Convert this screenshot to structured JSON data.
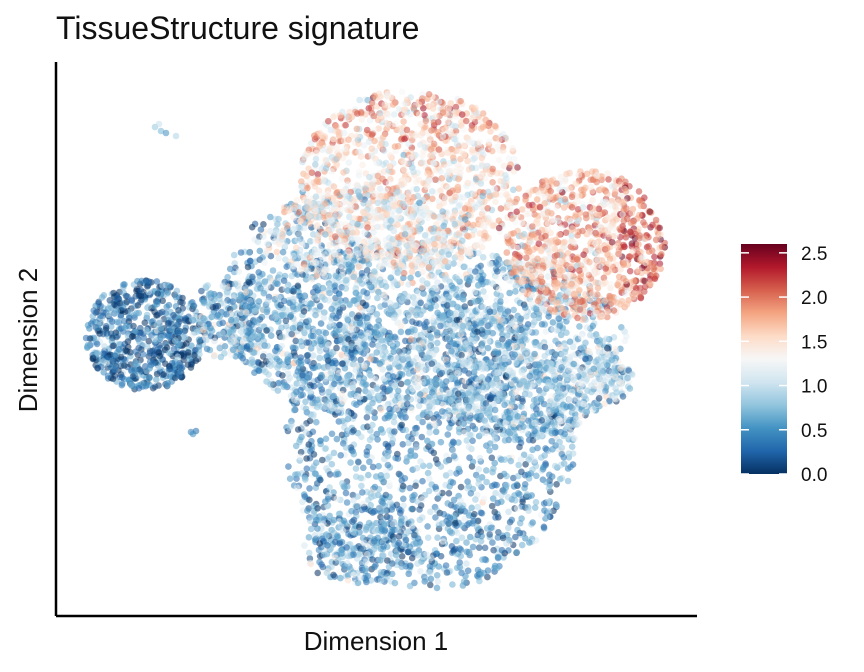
{
  "chart_data": {
    "type": "scatter",
    "title": "TissueStructure signature",
    "xlabel": "Dimension 1",
    "ylabel": "Dimension 2",
    "x_ticks_shown": false,
    "y_ticks_shown": false,
    "xlim": [
      0,
      10
    ],
    "ylim": [
      0,
      10
    ],
    "grid": false,
    "point_opacity": 0.55,
    "colorbar": {
      "placement": "right",
      "range": [
        0.0,
        2.6
      ],
      "ticks": [
        {
          "value": 0.0,
          "label": "0.0"
        },
        {
          "value": 0.5,
          "label": "0.5"
        },
        {
          "value": 1.0,
          "label": "1.0"
        },
        {
          "value": 1.5,
          "label": "1.5"
        },
        {
          "value": 2.0,
          "label": "2.0"
        },
        {
          "value": 2.5,
          "label": "2.5"
        }
      ],
      "colors": [
        "#053061",
        "#2166ac",
        "#4393c3",
        "#92c5de",
        "#d1e5f0",
        "#f7f7f7",
        "#fddbc7",
        "#f4a582",
        "#d6604d",
        "#b2182b",
        "#67001f"
      ]
    },
    "clusters": [
      {
        "region": "central body",
        "x_range": [
          3.2,
          8.5
        ],
        "y_range": [
          0.5,
          5.5
        ],
        "typical_value": 0.6
      },
      {
        "region": "upper lobe",
        "x_range": [
          4.3,
          7.6
        ],
        "y_range": [
          5.8,
          9.4
        ],
        "typical_value": 1.5
      },
      {
        "region": "right lobe",
        "x_range": [
          7.4,
          9.7
        ],
        "y_range": [
          4.6,
          8.3
        ],
        "typical_value": 1.7
      },
      {
        "region": "left cluster",
        "x_range": [
          0.5,
          2.6
        ],
        "y_range": [
          3.9,
          6.2
        ],
        "typical_value": 0.3
      },
      {
        "region": "bridge",
        "x_range": [
          2.3,
          3.6
        ],
        "y_range": [
          4.2,
          5.8
        ],
        "typical_value": 0.8
      },
      {
        "region": "small top-left group",
        "x_range": [
          1.6,
          2.0
        ],
        "y_range": [
          8.4,
          8.7
        ],
        "typical_value": 0.7
      },
      {
        "region": "small lower-left group",
        "x_range": [
          2.2,
          2.5
        ],
        "y_range": [
          3.1,
          3.3
        ],
        "typical_value": 0.4
      }
    ]
  }
}
